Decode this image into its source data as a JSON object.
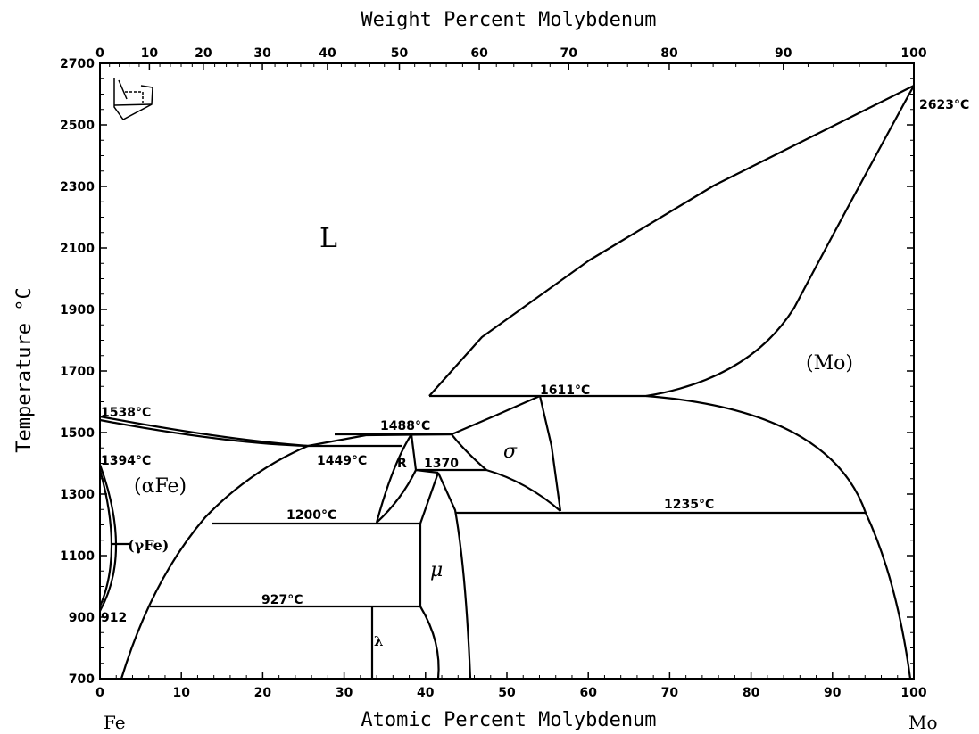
{
  "titles": {
    "top_axis": "Weight Percent Molybdenum",
    "bottom_axis": "Atomic Percent Molybdenum",
    "y_axis": "Temperature °C",
    "left_element": "Fe",
    "right_element": "Mo"
  },
  "axes": {
    "x_ticks": [
      "0",
      "10",
      "20",
      "30",
      "40",
      "50",
      "60",
      "70",
      "80",
      "90",
      "100"
    ],
    "y_ticks": [
      "700",
      "900",
      "1100",
      "1300",
      "1500",
      "1700",
      "1900",
      "2100",
      "2300",
      "2500",
      "2700"
    ],
    "wt_ticks": [
      "0",
      "10",
      "20",
      "30",
      "40",
      "50",
      "60",
      "70",
      "80",
      "90",
      "100"
    ]
  },
  "phases": {
    "liquid": "L",
    "mo": "(Mo)",
    "alpha_fe": "(αFe)",
    "gamma_fe": "(γFe)",
    "sigma": "σ",
    "mu": "μ",
    "lambda": "λ",
    "r": "R"
  },
  "temperatures": {
    "mo_melting": "2623°C",
    "fe_melting": "1538°C",
    "fe_alpha_gamma": "1394°C",
    "fe_gamma_alpha": "912",
    "t1611": "1611°C",
    "t1488": "1488°C",
    "t1449": "1449°C",
    "t1370": "1370",
    "t1200": "1200°C",
    "t1235": "1235°C",
    "t927": "927°C"
  },
  "chart_data": {
    "type": "phase-diagram",
    "x_axis": {
      "label": "Atomic Percent Molybdenum",
      "range": [
        0,
        100
      ]
    },
    "x2_axis": {
      "label": "Weight Percent Molybdenum",
      "range": [
        0,
        100
      ]
    },
    "y_axis": {
      "label": "Temperature °C",
      "range": [
        700,
        2700
      ]
    },
    "invariants": [
      {
        "temperature": 2623,
        "label": "2623°C"
      },
      {
        "temperature": 1611,
        "label": "1611°C"
      },
      {
        "temperature": 1538,
        "label": "1538°C"
      },
      {
        "temperature": 1488,
        "label": "1488°C"
      },
      {
        "temperature": 1449,
        "label": "1449°C"
      },
      {
        "temperature": 1394,
        "label": "1394°C"
      },
      {
        "temperature": 1370,
        "label": "1370"
      },
      {
        "temperature": 1235,
        "label": "1235°C"
      },
      {
        "temperature": 1200,
        "label": "1200°C"
      },
      {
        "temperature": 927,
        "label": "927°C"
      },
      {
        "temperature": 912,
        "label": "912"
      }
    ],
    "phase_regions": [
      "L",
      "(Mo)",
      "(αFe)",
      "(γFe)",
      "σ",
      "μ",
      "λ",
      "R"
    ]
  }
}
